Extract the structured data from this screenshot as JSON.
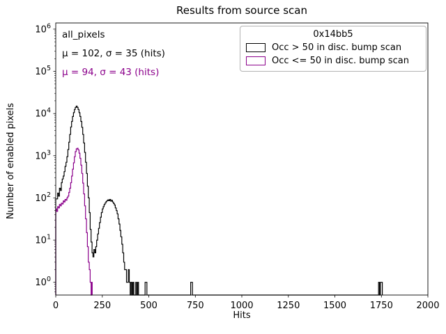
{
  "chart_data": {
    "type": "line",
    "subtype": "step-histogram",
    "title": "Results from source scan",
    "xlabel": "Hits",
    "ylabel": "Number of enabled pixels",
    "xlim": [
      0,
      2000
    ],
    "ylim": [
      0.5,
      1400000
    ],
    "yscale": "log",
    "x_ticks": [
      0,
      250,
      500,
      750,
      1000,
      1250,
      1500,
      1750,
      2000
    ],
    "y_tick_exponents": [
      0,
      1,
      2,
      3,
      4,
      5,
      6
    ],
    "grid": false,
    "legend": {
      "title": "0x14bb5",
      "position": "upper right"
    },
    "annotations": [
      {
        "text": "all_pixels",
        "color": "#000000"
      },
      {
        "text": "μ = 102, σ = 35 (hits)",
        "color": "#000000"
      },
      {
        "text": "μ = 94, σ = 43 (hits)",
        "color": "#8b008b"
      }
    ],
    "series": [
      {
        "name": "Occ > 50 in disc. bump scan",
        "color": "#000000",
        "points": [
          [
            0,
            95
          ],
          [
            10,
            130
          ],
          [
            15,
            110
          ],
          [
            20,
            170
          ],
          [
            25,
            150
          ],
          [
            30,
            230
          ],
          [
            35,
            280
          ],
          [
            40,
            330
          ],
          [
            45,
            420
          ],
          [
            50,
            560
          ],
          [
            55,
            700
          ],
          [
            60,
            950
          ],
          [
            65,
            1400
          ],
          [
            70,
            2100
          ],
          [
            75,
            3200
          ],
          [
            80,
            4800
          ],
          [
            85,
            6500
          ],
          [
            90,
            8500
          ],
          [
            95,
            10500
          ],
          [
            100,
            12500
          ],
          [
            105,
            14000
          ],
          [
            110,
            15000
          ],
          [
            115,
            14000
          ],
          [
            120,
            12500
          ],
          [
            125,
            10500
          ],
          [
            130,
            8500
          ],
          [
            135,
            6500
          ],
          [
            140,
            4700
          ],
          [
            145,
            3200
          ],
          [
            150,
            2000
          ],
          [
            155,
            1200
          ],
          [
            160,
            700
          ],
          [
            165,
            380
          ],
          [
            170,
            190
          ],
          [
            175,
            100
          ],
          [
            180,
            45
          ],
          [
            185,
            18
          ],
          [
            190,
            9
          ],
          [
            195,
            5
          ],
          [
            200,
            4
          ],
          [
            205,
            6
          ],
          [
            210,
            5
          ],
          [
            215,
            7
          ],
          [
            220,
            10
          ],
          [
            225,
            14
          ],
          [
            230,
            19
          ],
          [
            235,
            26
          ],
          [
            240,
            35
          ],
          [
            245,
            45
          ],
          [
            250,
            55
          ],
          [
            255,
            62
          ],
          [
            260,
            70
          ],
          [
            265,
            76
          ],
          [
            270,
            82
          ],
          [
            275,
            86
          ],
          [
            280,
            90
          ],
          [
            285,
            86
          ],
          [
            290,
            92
          ],
          [
            295,
            84
          ],
          [
            300,
            88
          ],
          [
            305,
            80
          ],
          [
            310,
            74
          ],
          [
            315,
            68
          ],
          [
            320,
            58
          ],
          [
            325,
            50
          ],
          [
            330,
            42
          ],
          [
            335,
            32
          ],
          [
            340,
            24
          ],
          [
            345,
            17
          ],
          [
            350,
            12
          ],
          [
            355,
            8
          ],
          [
            360,
            5
          ],
          [
            365,
            3
          ],
          [
            370,
            2
          ],
          [
            375,
            2
          ],
          [
            380,
            1
          ],
          [
            390,
            2
          ],
          [
            395,
            1
          ],
          [
            400,
            0
          ],
          [
            405,
            1
          ],
          [
            410,
            0
          ],
          [
            415,
            1
          ],
          [
            420,
            0
          ],
          [
            430,
            1
          ],
          [
            435,
            0
          ],
          [
            440,
            1
          ],
          [
            445,
            0
          ],
          [
            480,
            1
          ],
          [
            490,
            0
          ],
          [
            725,
            1
          ],
          [
            735,
            0
          ],
          [
            1735,
            1
          ],
          [
            1740,
            0
          ],
          [
            1745,
            1
          ],
          [
            1755,
            0
          ]
        ]
      },
      {
        "name": "Occ <= 50 in disc. bump scan",
        "color": "#8b008b",
        "points": [
          [
            0,
            55
          ],
          [
            5,
            48
          ],
          [
            10,
            62
          ],
          [
            15,
            58
          ],
          [
            20,
            70
          ],
          [
            25,
            65
          ],
          [
            30,
            75
          ],
          [
            35,
            72
          ],
          [
            40,
            85
          ],
          [
            45,
            80
          ],
          [
            50,
            92
          ],
          [
            55,
            88
          ],
          [
            60,
            100
          ],
          [
            65,
            110
          ],
          [
            70,
            135
          ],
          [
            75,
            170
          ],
          [
            80,
            230
          ],
          [
            85,
            330
          ],
          [
            90,
            480
          ],
          [
            95,
            680
          ],
          [
            100,
            950
          ],
          [
            105,
            1250
          ],
          [
            110,
            1450
          ],
          [
            115,
            1500
          ],
          [
            120,
            1380
          ],
          [
            125,
            1150
          ],
          [
            130,
            870
          ],
          [
            135,
            600
          ],
          [
            140,
            380
          ],
          [
            145,
            225
          ],
          [
            150,
            125
          ],
          [
            155,
            65
          ],
          [
            160,
            32
          ],
          [
            165,
            15
          ],
          [
            170,
            7
          ],
          [
            175,
            3
          ],
          [
            180,
            2
          ],
          [
            185,
            1
          ],
          [
            190,
            0
          ],
          [
            193,
            1
          ],
          [
            196,
            0
          ]
        ]
      }
    ]
  }
}
